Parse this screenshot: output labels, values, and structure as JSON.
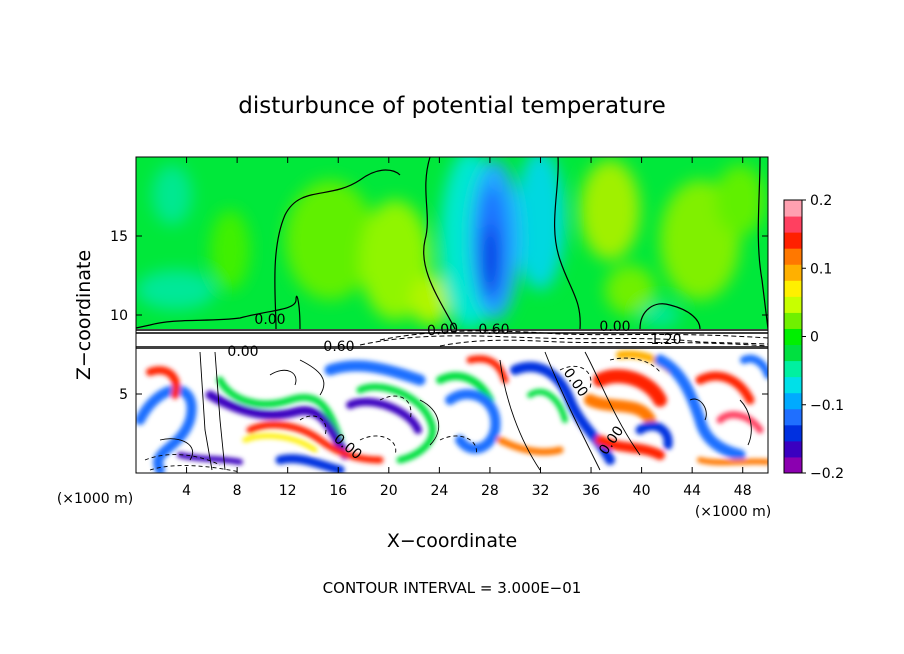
{
  "chart_data": {
    "type": "heatmap",
    "title": "disturbunce of potential temperature",
    "xlabel": "X−coordinate",
    "ylabel": "Z−coordinate",
    "x_unit": "(×1000 m)",
    "x_unit_right": "(×1000 m)",
    "xlim": [
      0,
      50
    ],
    "ylim": [
      0,
      20
    ],
    "x_ticks": [
      4,
      8,
      12,
      16,
      20,
      24,
      28,
      32,
      36,
      40,
      44,
      48
    ],
    "y_ticks": [
      5,
      10,
      15
    ],
    "colorbar": {
      "ticks": [
        "0.2",
        "0.1",
        "0",
        "−0.1",
        "−0.2"
      ],
      "range": [
        -0.2,
        0.2
      ],
      "colors": [
        "#8b00b0",
        "#3a00c0",
        "#0030e0",
        "#1f6fff",
        "#00aaff",
        "#00e0e8",
        "#00f0a0",
        "#00e040",
        "#00f000",
        "#70f000",
        "#c8ff00",
        "#fff000",
        "#ffb000",
        "#ff7800",
        "#ff2000",
        "#ff4060",
        "#ffa0b0"
      ]
    },
    "contour_labels": [
      "0.00",
      "0.00",
      "0.60",
      "0.00",
      "0.60",
      "0.00",
      "1.20",
      "0.00",
      "0.00",
      "0.00"
    ],
    "footer": "CONTOUR INTERVAL = 3.000E−01",
    "upper_layer": {
      "z_range": [
        9,
        20
      ],
      "field": "near zero; cold anomaly column near x=28"
    },
    "lower_layer": {
      "z_range": [
        0,
        8
      ],
      "field": "turbulent positive and negative anomalies"
    }
  }
}
